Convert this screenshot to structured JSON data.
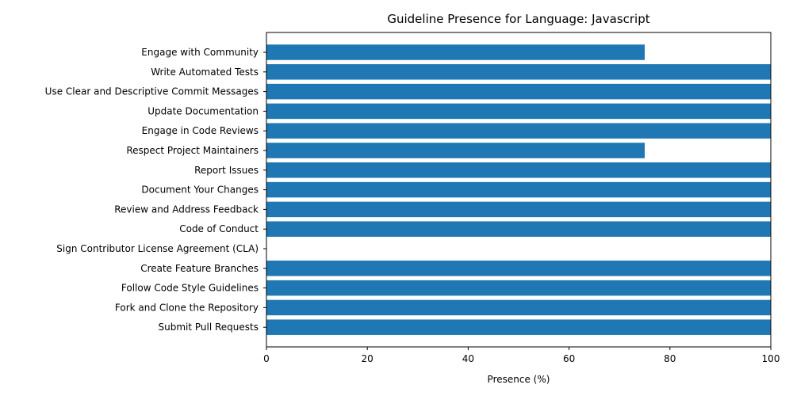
{
  "chart_data": {
    "type": "bar",
    "orientation": "horizontal",
    "title": "Guideline Presence for Language: Javascript",
    "xlabel": "Presence (%)",
    "ylabel": "",
    "xlim": [
      0,
      100
    ],
    "xticks": [
      "0",
      "20",
      "40",
      "60",
      "80",
      "100"
    ],
    "grid": false,
    "bar_color": "#1f77b4",
    "categories": [
      "Engage with Community",
      "Write Automated Tests",
      "Use Clear and Descriptive Commit Messages",
      "Update Documentation",
      "Engage in Code Reviews",
      "Respect Project Maintainers",
      "Report Issues",
      "Document Your Changes",
      "Review and Address Feedback",
      "Code of Conduct",
      "Sign Contributor License Agreement (CLA)",
      "Create Feature Branches",
      "Follow Code Style Guidelines",
      "Fork and Clone the Repository",
      "Submit Pull Requests"
    ],
    "values": [
      75,
      100,
      100,
      100,
      100,
      75,
      100,
      100,
      100,
      100,
      0,
      100,
      100,
      100,
      100
    ]
  }
}
